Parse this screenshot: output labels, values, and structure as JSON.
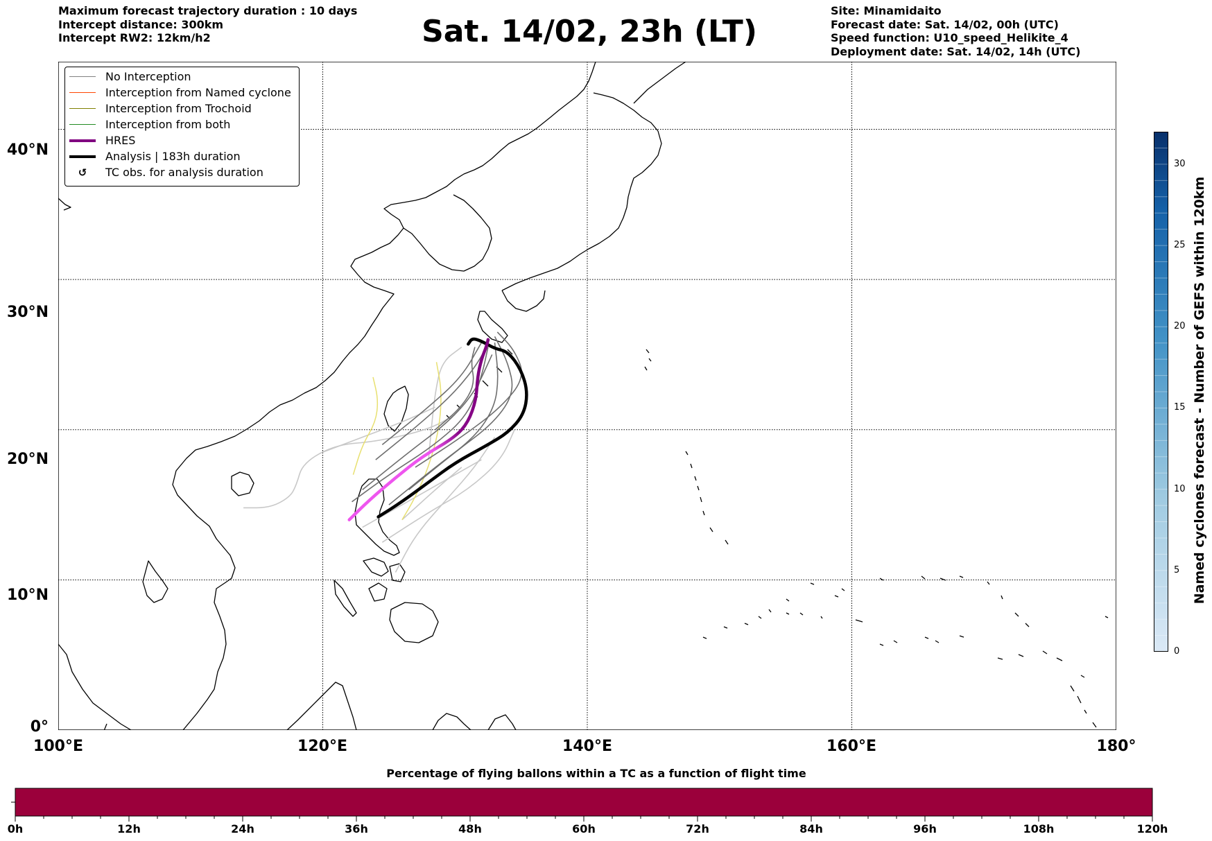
{
  "header_left": [
    "Maximum forecast trajectory duration : 10 days",
    "Intercept distance: 300km",
    "Intercept RW2: 12km/h2"
  ],
  "title": "Sat. 14/02, 23h (LT)",
  "header_right": [
    "Site: Minamidaito",
    "Forecast date: Sat. 14/02, 00h (UTC)",
    "Speed function: U10_speed_Helikite_4",
    "Deployment date: Sat. 14/02, 14h (UTC)"
  ],
  "map": {
    "lon_range": [
      100,
      180
    ],
    "lat_range": [
      0,
      44.5
    ],
    "lat_ticks": [
      "0°",
      "10°N",
      "20°N",
      "30°N",
      "40°N"
    ],
    "lon_ticks": [
      "100°E",
      "120°E",
      "140°E",
      "160°E",
      "180°"
    ],
    "grid": "dotted"
  },
  "legend": {
    "placement": "top-left",
    "items": [
      {
        "label": "No Interception",
        "color": "#808080",
        "width": 1
      },
      {
        "label": "Interception from Named cyclone",
        "color": "#ff4500",
        "width": 1
      },
      {
        "label": "Interception from Trochoid",
        "color": "#808000",
        "width": 1
      },
      {
        "label": "Interception from both",
        "color": "#228b22",
        "width": 1
      },
      {
        "label": "HRES",
        "color": "#800080",
        "width": 4
      },
      {
        "label": "Analysis | 183h duration",
        "color": "#000000",
        "width": 4
      },
      {
        "label": "TC obs. for analysis duration",
        "color": "#000000",
        "symbol": "cyclone"
      }
    ]
  },
  "colorbar": {
    "label": "Named cyclones forecast - Number of GEFS within 120km",
    "range": [
      0,
      32
    ],
    "ticks": [
      "0",
      "5",
      "10",
      "15",
      "20",
      "25",
      "30"
    ],
    "color_low": "#dbe9f6",
    "color_high": "#08306b"
  },
  "bottom_bar": {
    "title": "Percentage of flying ballons within a TC as a function of flight time",
    "color": "#9b003b",
    "ticks": [
      "0h",
      "12h",
      "24h",
      "36h",
      "48h",
      "60h",
      "72h",
      "84h",
      "96h",
      "108h",
      "120h"
    ]
  },
  "tracks": {
    "hres": [
      [
        122.0,
        14.0
      ],
      [
        123.5,
        15.3
      ],
      [
        125.5,
        16.8
      ],
      [
        127.5,
        18.2
      ],
      [
        130.0,
        19.5
      ],
      [
        131.0,
        20.5
      ],
      [
        131.6,
        22.0
      ],
      [
        131.7,
        23.5
      ],
      [
        132.0,
        24.7
      ],
      [
        132.4,
        25.6
      ],
      [
        132.5,
        26.0
      ]
    ],
    "analysis": [
      [
        124.2,
        14.2
      ],
      [
        126.0,
        15.2
      ],
      [
        128.0,
        16.5
      ],
      [
        130.0,
        17.8
      ],
      [
        132.5,
        19.0
      ],
      [
        134.0,
        19.8
      ],
      [
        135.2,
        21.0
      ],
      [
        135.5,
        22.5
      ],
      [
        135.0,
        24.0
      ],
      [
        134.0,
        25.2
      ],
      [
        133.0,
        25.4
      ],
      [
        132.0,
        25.9
      ],
      [
        131.3,
        26.1
      ],
      [
        131.0,
        25.7
      ]
    ],
    "ensemble_dark": [
      [
        [
          122.2,
          15.2
        ],
        [
          125.0,
          17.0
        ],
        [
          128.5,
          19.0
        ],
        [
          131.0,
          21.0
        ],
        [
          132.0,
          23.5
        ],
        [
          132.5,
          25.5
        ]
      ],
      [
        [
          123.0,
          16.0
        ],
        [
          126.5,
          18.5
        ],
        [
          129.5,
          20.5
        ],
        [
          131.5,
          22.5
        ],
        [
          132.8,
          25.0
        ]
      ],
      [
        [
          124.0,
          18.0
        ],
        [
          127.5,
          20.5
        ],
        [
          130.0,
          22.5
        ],
        [
          131.8,
          24.5
        ],
        [
          132.6,
          26.0
        ]
      ],
      [
        [
          124.5,
          19.0
        ],
        [
          128.0,
          21.5
        ],
        [
          130.5,
          23.5
        ],
        [
          132.0,
          25.8
        ]
      ],
      [
        [
          126.5,
          16.0
        ],
        [
          130.0,
          18.5
        ],
        [
          133.0,
          20.5
        ],
        [
          134.5,
          22.5
        ],
        [
          134.0,
          24.5
        ],
        [
          133.0,
          26.2
        ]
      ],
      [
        [
          127.0,
          17.5
        ],
        [
          130.5,
          19.5
        ],
        [
          133.5,
          21.5
        ],
        [
          135.3,
          23.5
        ],
        [
          134.5,
          25.3
        ],
        [
          133.2,
          26.5
        ]
      ],
      [
        [
          125.0,
          15.0
        ],
        [
          128.5,
          17.5
        ],
        [
          131.5,
          19.5
        ],
        [
          133.0,
          21.5
        ],
        [
          133.3,
          23.5
        ],
        [
          133.0,
          25.8
        ]
      ],
      [
        [
          128.5,
          20.0
        ],
        [
          130.5,
          21.5
        ],
        [
          131.5,
          23.0
        ],
        [
          131.2,
          24.5
        ],
        [
          131.5,
          25.5
        ]
      ]
    ],
    "ensemble_light": [
      [
        [
          114.0,
          14.8
        ],
        [
          116.0,
          14.8
        ],
        [
          117.5,
          15.5
        ],
        [
          118.0,
          16.3
        ],
        [
          118.5,
          17.8
        ],
        [
          121.0,
          19.0
        ],
        [
          124.0,
          19.2
        ],
        [
          128.0,
          20.0
        ],
        [
          130.0,
          21.0
        ]
      ],
      [
        [
          120.0,
          18.5
        ],
        [
          123.0,
          19.5
        ],
        [
          126.0,
          20.5
        ],
        [
          128.5,
          21.5
        ]
      ],
      [
        [
          124.5,
          12.5
        ],
        [
          128.0,
          14.5
        ],
        [
          131.0,
          16.0
        ],
        [
          133.5,
          18.0
        ],
        [
          134.5,
          20.0
        ]
      ],
      [
        [
          125.5,
          10.5
        ],
        [
          127.0,
          13.0
        ],
        [
          129.5,
          15.5
        ],
        [
          131.5,
          17.5
        ],
        [
          133.0,
          19.5
        ]
      ],
      [
        [
          123.0,
          13.5
        ],
        [
          126.0,
          15.0
        ],
        [
          129.0,
          16.5
        ],
        [
          132.0,
          18.0
        ]
      ],
      [
        [
          128.0,
          18.0
        ],
        [
          128.2,
          20.0
        ],
        [
          128.5,
          22.5
        ],
        [
          129.0,
          24.5
        ],
        [
          130.5,
          25.5
        ]
      ],
      [
        [
          126.0,
          14.0
        ],
        [
          128.5,
          16.0
        ],
        [
          130.5,
          17.5
        ]
      ]
    ],
    "yellow": [
      [
        [
          122.3,
          17.0
        ],
        [
          123.0,
          19.0
        ],
        [
          124.0,
          20.5
        ],
        [
          124.2,
          22.0
        ],
        [
          123.8,
          23.5
        ]
      ],
      [
        [
          126.0,
          14.0
        ],
        [
          127.0,
          15.5
        ],
        [
          128.0,
          17.5
        ],
        [
          128.8,
          20.0
        ],
        [
          129.0,
          22.5
        ],
        [
          128.6,
          24.5
        ]
      ]
    ]
  }
}
